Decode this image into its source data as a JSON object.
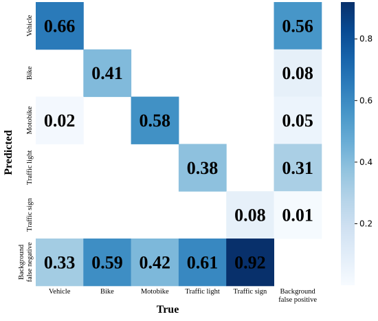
{
  "chart_data": {
    "type": "heatmap",
    "title": "",
    "xlabel": "True",
    "ylabel": "Predicted",
    "columns": [
      [
        "Vehicle"
      ],
      [
        "Bike"
      ],
      [
        "Motobike"
      ],
      [
        "Traffic light"
      ],
      [
        "Traffic sign"
      ],
      [
        "Background",
        "false positive"
      ]
    ],
    "rows": [
      [
        "Vehicle"
      ],
      [
        "Bike"
      ],
      [
        "Motobike"
      ],
      [
        "Traffic light"
      ],
      [
        "Traffic sign"
      ],
      [
        "Background",
        "false negative"
      ]
    ],
    "values": [
      [
        0.66,
        null,
        null,
        null,
        null,
        0.56
      ],
      [
        null,
        0.41,
        null,
        null,
        null,
        0.08
      ],
      [
        0.02,
        null,
        0.58,
        null,
        null,
        0.05
      ],
      [
        null,
        null,
        null,
        0.38,
        null,
        0.31
      ],
      [
        null,
        null,
        null,
        null,
        0.08,
        0.01
      ],
      [
        0.33,
        0.59,
        0.42,
        0.61,
        0.92,
        null
      ]
    ],
    "colorbar": {
      "range": [
        0,
        0.92
      ],
      "ticks": [
        0.2,
        0.4,
        0.6,
        0.8
      ],
      "colormap": "Blues"
    }
  }
}
